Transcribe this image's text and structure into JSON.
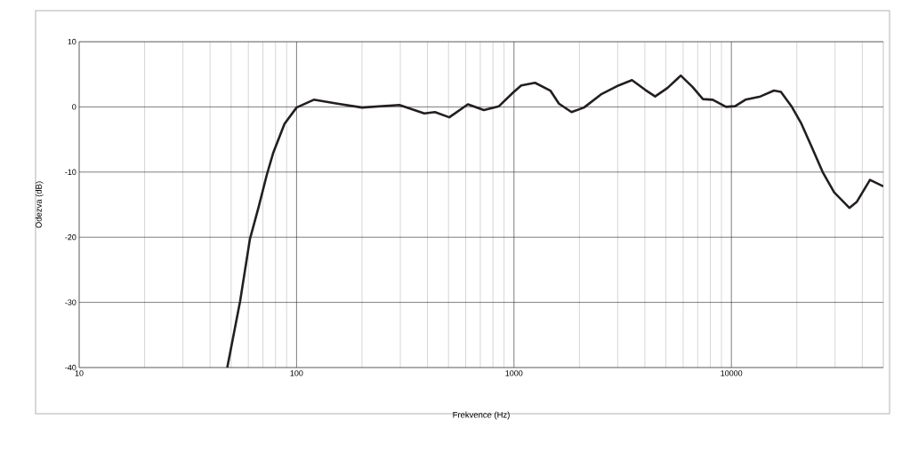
{
  "chart_data": {
    "type": "line",
    "xlabel": "Frekvence (Hz)",
    "ylabel": "Odezva (dB)",
    "log": "x",
    "xlim": [
      10,
      50000
    ],
    "ylim": [
      -40,
      10
    ],
    "xticks": [
      10,
      100,
      1000,
      10000
    ],
    "yticks": [
      -40,
      -30,
      -20,
      -10,
      0,
      10
    ],
    "grid": true,
    "marker": "none",
    "line_style": "solid",
    "series": [
      {
        "color": "#231f20",
        "x": [
          48,
          55,
          61,
          67,
          73,
          78,
          88,
          100,
          120,
          154,
          200,
          297,
          387,
          433,
          504,
          614,
          727,
          853,
          991,
          1080,
          1250,
          1470,
          1610,
          1840,
          2100,
          2510,
          3030,
          3490,
          4020,
          4460,
          5080,
          5850,
          6610,
          7400,
          8210,
          9450,
          10400,
          11600,
          13600,
          15700,
          16900,
          18900,
          21000,
          23100,
          26300,
          29700,
          34900,
          37700,
          43400,
          50000
        ],
        "values": [
          -40,
          -29.8,
          -20.3,
          -15.3,
          -10.4,
          -7.1,
          -2.6,
          -0.1,
          1.1,
          0.5,
          -0.1,
          0.3,
          -1.0,
          -0.8,
          -1.6,
          0.4,
          -0.5,
          0.1,
          2.2,
          3.3,
          3.7,
          2.5,
          0.5,
          -0.8,
          -0.1,
          1.9,
          3.3,
          4.1,
          2.6,
          1.6,
          2.9,
          4.8,
          3.1,
          1.2,
          1.1,
          0.0,
          0.1,
          1.1,
          1.6,
          2.5,
          2.3,
          0.1,
          -2.6,
          -5.7,
          -10.0,
          -13.1,
          -15.5,
          -14.6,
          -11.2,
          -12.2
        ]
      }
    ]
  }
}
